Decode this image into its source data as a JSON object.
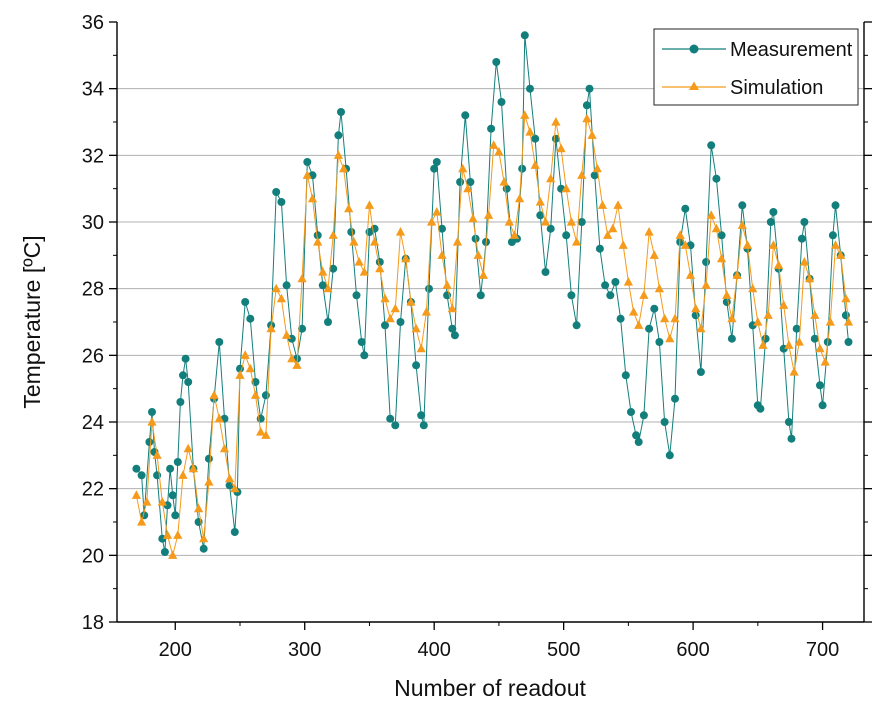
{
  "chart_data": {
    "type": "line",
    "title": "",
    "xlabel": "Number of readout",
    "ylabel": "Temperature [ºC]",
    "xlim": [
      155,
      732
    ],
    "ylim": [
      18,
      36
    ],
    "x_ticks": [
      200,
      300,
      400,
      500,
      600,
      700
    ],
    "y_ticks": [
      18,
      20,
      22,
      24,
      26,
      28,
      30,
      32,
      34,
      36
    ],
    "grid": "horizontal",
    "legend_position": "top-right",
    "colors": {
      "measurement": "#137f7c",
      "simulation": "#f59a1a",
      "grid": "#b0b0b0"
    },
    "series": [
      {
        "name": "Measurement",
        "marker": "circle",
        "points": [
          [
            170,
            22.6
          ],
          [
            174,
            22.4
          ],
          [
            176,
            21.2
          ],
          [
            180,
            23.4
          ],
          [
            182,
            24.3
          ],
          [
            184,
            23.1
          ],
          [
            186,
            22.4
          ],
          [
            190,
            20.5
          ],
          [
            192,
            20.1
          ],
          [
            194,
            21.5
          ],
          [
            196,
            22.6
          ],
          [
            198,
            21.8
          ],
          [
            200,
            21.2
          ],
          [
            202,
            22.8
          ],
          [
            204,
            24.6
          ],
          [
            206,
            25.4
          ],
          [
            208,
            25.9
          ],
          [
            210,
            25.2
          ],
          [
            214,
            22.6
          ],
          [
            218,
            21.0
          ],
          [
            222,
            20.2
          ],
          [
            226,
            22.9
          ],
          [
            230,
            24.7
          ],
          [
            234,
            26.4
          ],
          [
            238,
            24.1
          ],
          [
            242,
            22.1
          ],
          [
            246,
            20.7
          ],
          [
            248,
            21.9
          ],
          [
            250,
            25.6
          ],
          [
            254,
            27.6
          ],
          [
            258,
            27.1
          ],
          [
            262,
            25.2
          ],
          [
            266,
            24.1
          ],
          [
            270,
            24.8
          ],
          [
            274,
            26.9
          ],
          [
            278,
            30.9
          ],
          [
            282,
            30.6
          ],
          [
            286,
            28.1
          ],
          [
            290,
            26.5
          ],
          [
            294,
            25.9
          ],
          [
            298,
            26.8
          ],
          [
            302,
            31.8
          ],
          [
            306,
            31.4
          ],
          [
            310,
            29.6
          ],
          [
            314,
            28.1
          ],
          [
            318,
            27.0
          ],
          [
            322,
            28.6
          ],
          [
            326,
            32.6
          ],
          [
            328,
            33.3
          ],
          [
            332,
            31.6
          ],
          [
            336,
            29.7
          ],
          [
            340,
            27.8
          ],
          [
            344,
            26.4
          ],
          [
            346,
            26.0
          ],
          [
            350,
            29.7
          ],
          [
            354,
            29.8
          ],
          [
            358,
            28.8
          ],
          [
            362,
            26.9
          ],
          [
            366,
            24.1
          ],
          [
            370,
            23.9
          ],
          [
            374,
            27.0
          ],
          [
            378,
            28.9
          ],
          [
            382,
            27.6
          ],
          [
            386,
            25.7
          ],
          [
            390,
            24.2
          ],
          [
            392,
            23.9
          ],
          [
            396,
            28.0
          ],
          [
            400,
            31.6
          ],
          [
            402,
            31.8
          ],
          [
            406,
            29.8
          ],
          [
            410,
            27.8
          ],
          [
            414,
            26.8
          ],
          [
            416,
            26.6
          ],
          [
            420,
            31.2
          ],
          [
            424,
            33.2
          ],
          [
            428,
            31.2
          ],
          [
            432,
            29.5
          ],
          [
            436,
            27.8
          ],
          [
            440,
            29.4
          ],
          [
            444,
            32.8
          ],
          [
            448,
            34.8
          ],
          [
            452,
            33.6
          ],
          [
            456,
            31.0
          ],
          [
            460,
            29.4
          ],
          [
            464,
            29.5
          ],
          [
            468,
            31.6
          ],
          [
            470,
            35.6
          ],
          [
            474,
            34.0
          ],
          [
            478,
            32.5
          ],
          [
            482,
            30.2
          ],
          [
            486,
            28.5
          ],
          [
            490,
            29.8
          ],
          [
            494,
            32.5
          ],
          [
            498,
            31.0
          ],
          [
            502,
            29.6
          ],
          [
            506,
            27.8
          ],
          [
            510,
            26.9
          ],
          [
            514,
            30.0
          ],
          [
            518,
            33.5
          ],
          [
            520,
            34.0
          ],
          [
            524,
            31.4
          ],
          [
            528,
            29.2
          ],
          [
            532,
            28.1
          ],
          [
            536,
            27.8
          ],
          [
            540,
            28.2
          ],
          [
            544,
            27.1
          ],
          [
            548,
            25.4
          ],
          [
            552,
            24.3
          ],
          [
            556,
            23.6
          ],
          [
            558,
            23.4
          ],
          [
            562,
            24.2
          ],
          [
            566,
            26.8
          ],
          [
            570,
            27.4
          ],
          [
            574,
            26.4
          ],
          [
            578,
            24.0
          ],
          [
            582,
            23.0
          ],
          [
            586,
            24.7
          ],
          [
            590,
            29.4
          ],
          [
            594,
            30.4
          ],
          [
            598,
            29.3
          ],
          [
            602,
            27.2
          ],
          [
            606,
            25.5
          ],
          [
            610,
            28.8
          ],
          [
            614,
            32.3
          ],
          [
            618,
            31.3
          ],
          [
            622,
            29.6
          ],
          [
            626,
            27.6
          ],
          [
            630,
            26.5
          ],
          [
            634,
            28.4
          ],
          [
            638,
            30.5
          ],
          [
            642,
            29.2
          ],
          [
            646,
            26.9
          ],
          [
            650,
            24.5
          ],
          [
            652,
            24.4
          ],
          [
            656,
            26.5
          ],
          [
            660,
            30.0
          ],
          [
            662,
            30.3
          ],
          [
            666,
            28.6
          ],
          [
            670,
            26.2
          ],
          [
            674,
            24.0
          ],
          [
            676,
            23.5
          ],
          [
            680,
            26.8
          ],
          [
            684,
            29.5
          ],
          [
            686,
            30.0
          ],
          [
            690,
            28.3
          ],
          [
            694,
            26.5
          ],
          [
            698,
            25.1
          ],
          [
            700,
            24.5
          ],
          [
            704,
            26.4
          ],
          [
            708,
            29.6
          ],
          [
            710,
            30.5
          ],
          [
            714,
            29.0
          ],
          [
            718,
            27.2
          ],
          [
            720,
            26.4
          ]
        ]
      },
      {
        "name": "Simulation",
        "marker": "triangle",
        "points": [
          [
            170,
            21.8
          ],
          [
            174,
            21.0
          ],
          [
            178,
            21.6
          ],
          [
            182,
            24.0
          ],
          [
            186,
            23.0
          ],
          [
            190,
            21.6
          ],
          [
            194,
            20.6
          ],
          [
            198,
            20.0
          ],
          [
            202,
            20.6
          ],
          [
            206,
            22.4
          ],
          [
            210,
            23.2
          ],
          [
            214,
            22.6
          ],
          [
            218,
            21.4
          ],
          [
            222,
            20.5
          ],
          [
            226,
            22.2
          ],
          [
            230,
            24.8
          ],
          [
            234,
            24.1
          ],
          [
            238,
            23.2
          ],
          [
            242,
            22.3
          ],
          [
            246,
            22.0
          ],
          [
            250,
            25.4
          ],
          [
            254,
            26.0
          ],
          [
            258,
            25.6
          ],
          [
            262,
            24.8
          ],
          [
            266,
            23.7
          ],
          [
            270,
            23.6
          ],
          [
            274,
            26.8
          ],
          [
            278,
            28.0
          ],
          [
            282,
            27.7
          ],
          [
            286,
            26.6
          ],
          [
            290,
            25.9
          ],
          [
            294,
            25.7
          ],
          [
            298,
            28.3
          ],
          [
            302,
            31.4
          ],
          [
            306,
            30.7
          ],
          [
            310,
            29.4
          ],
          [
            314,
            28.5
          ],
          [
            318,
            28.0
          ],
          [
            322,
            29.6
          ],
          [
            326,
            32.0
          ],
          [
            330,
            31.6
          ],
          [
            334,
            30.4
          ],
          [
            338,
            29.4
          ],
          [
            342,
            28.8
          ],
          [
            346,
            28.5
          ],
          [
            350,
            30.5
          ],
          [
            354,
            29.4
          ],
          [
            358,
            28.6
          ],
          [
            362,
            27.7
          ],
          [
            366,
            27.1
          ],
          [
            370,
            27.4
          ],
          [
            374,
            29.7
          ],
          [
            378,
            28.9
          ],
          [
            382,
            27.6
          ],
          [
            386,
            26.8
          ],
          [
            390,
            26.2
          ],
          [
            394,
            27.3
          ],
          [
            398,
            30.0
          ],
          [
            402,
            30.3
          ],
          [
            406,
            29.0
          ],
          [
            410,
            28.1
          ],
          [
            414,
            27.4
          ],
          [
            418,
            29.4
          ],
          [
            422,
            31.6
          ],
          [
            426,
            31.0
          ],
          [
            430,
            30.1
          ],
          [
            434,
            29.0
          ],
          [
            438,
            28.4
          ],
          [
            442,
            30.2
          ],
          [
            446,
            32.3
          ],
          [
            450,
            32.1
          ],
          [
            454,
            31.2
          ],
          [
            458,
            30.0
          ],
          [
            462,
            29.6
          ],
          [
            466,
            30.7
          ],
          [
            470,
            33.2
          ],
          [
            474,
            32.7
          ],
          [
            478,
            31.7
          ],
          [
            482,
            30.6
          ],
          [
            486,
            30.0
          ],
          [
            490,
            31.3
          ],
          [
            494,
            33.0
          ],
          [
            498,
            32.2
          ],
          [
            502,
            31.0
          ],
          [
            506,
            30.0
          ],
          [
            510,
            29.4
          ],
          [
            514,
            31.4
          ],
          [
            518,
            33.1
          ],
          [
            522,
            32.6
          ],
          [
            526,
            31.6
          ],
          [
            530,
            30.5
          ],
          [
            534,
            29.6
          ],
          [
            538,
            29.8
          ],
          [
            542,
            30.5
          ],
          [
            546,
            29.3
          ],
          [
            550,
            28.2
          ],
          [
            554,
            27.3
          ],
          [
            558,
            26.9
          ],
          [
            562,
            27.8
          ],
          [
            566,
            29.7
          ],
          [
            570,
            29.0
          ],
          [
            574,
            28.0
          ],
          [
            578,
            27.1
          ],
          [
            582,
            26.5
          ],
          [
            586,
            27.1
          ],
          [
            590,
            29.6
          ],
          [
            594,
            29.3
          ],
          [
            598,
            28.4
          ],
          [
            602,
            27.4
          ],
          [
            606,
            26.8
          ],
          [
            610,
            28.1
          ],
          [
            614,
            30.2
          ],
          [
            618,
            29.8
          ],
          [
            622,
            28.9
          ],
          [
            626,
            27.8
          ],
          [
            630,
            27.1
          ],
          [
            634,
            28.4
          ],
          [
            638,
            29.9
          ],
          [
            642,
            29.3
          ],
          [
            646,
            28.0
          ],
          [
            650,
            27.0
          ],
          [
            654,
            26.3
          ],
          [
            658,
            27.2
          ],
          [
            662,
            29.3
          ],
          [
            666,
            28.7
          ],
          [
            670,
            27.5
          ],
          [
            674,
            26.3
          ],
          [
            678,
            25.5
          ],
          [
            682,
            26.4
          ],
          [
            686,
            28.8
          ],
          [
            690,
            28.3
          ],
          [
            694,
            27.2
          ],
          [
            698,
            26.2
          ],
          [
            702,
            25.8
          ],
          [
            706,
            27.0
          ],
          [
            710,
            29.3
          ],
          [
            714,
            29.0
          ],
          [
            718,
            27.7
          ],
          [
            720,
            27.0
          ]
        ]
      }
    ]
  }
}
